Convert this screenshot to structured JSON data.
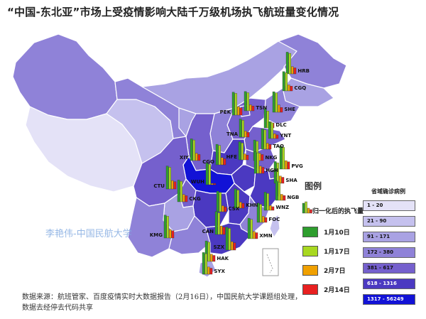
{
  "title": "“中国-东北亚”市场上受疫情影响大陆千万级机场执飞航班量变化情况",
  "legend": {
    "title": "图例",
    "normalized_label": "归一化后的执飞量",
    "dates": [
      {
        "label": "1月10日",
        "color": "#2e9e2e"
      },
      {
        "label": "1月17日",
        "color": "#a8d820"
      },
      {
        "label": "2月7日",
        "color": "#f0a000"
      },
      {
        "label": "2月14日",
        "color": "#e82020"
      }
    ]
  },
  "choropleth": {
    "title": "省域确诊病例",
    "classes": [
      {
        "label": "1 - 20",
        "color": "#e4e2f7"
      },
      {
        "label": "21 - 90",
        "color": "#c5c1ee"
      },
      {
        "label": "91 - 171",
        "color": "#a9a2e3"
      },
      {
        "label": "172 - 380",
        "color": "#8f82d8"
      },
      {
        "label": "381 - 617",
        "color": "#7560cd"
      },
      {
        "label": "618 - 1316",
        "color": "#4b39c1"
      },
      {
        "label": "1317 - 56249",
        "color": "#1212d6"
      }
    ]
  },
  "airports": [
    {
      "code": "HRB",
      "bars": [
        0.9,
        0.85,
        0.3,
        0.25
      ]
    },
    {
      "code": "CGQ",
      "bars": [
        0.8,
        0.75,
        0.25,
        0.2
      ]
    },
    {
      "code": "SHE",
      "bars": [
        0.85,
        0.8,
        0.3,
        0.2
      ]
    },
    {
      "code": "DLC",
      "bars": [
        0.8,
        0.7,
        0.25,
        0.2
      ]
    },
    {
      "code": "PEK",
      "bars": [
        0.95,
        0.9,
        0.35,
        0.3
      ]
    },
    {
      "code": "TSN",
      "bars": [
        0.8,
        0.75,
        0.25,
        0.2
      ]
    },
    {
      "code": "YNT",
      "bars": [
        0.7,
        0.65,
        0.2,
        0.15
      ]
    },
    {
      "code": "TNA",
      "bars": [
        0.75,
        0.7,
        0.25,
        0.2
      ]
    },
    {
      "code": "TAO",
      "bars": [
        0.85,
        0.8,
        0.25,
        0.2
      ]
    },
    {
      "code": "XIY",
      "bars": [
        0.9,
        0.85,
        0.3,
        0.25
      ]
    },
    {
      "code": "CGO",
      "bars": [
        0.85,
        0.8,
        0.3,
        0.25
      ]
    },
    {
      "code": "HFE",
      "bars": [
        0.75,
        0.7,
        0.25,
        0.2
      ]
    },
    {
      "code": "NKG",
      "bars": [
        0.85,
        0.8,
        0.3,
        0.25
      ]
    },
    {
      "code": "PVG",
      "bars": [
        0.95,
        0.9,
        0.35,
        0.3
      ]
    },
    {
      "code": "SHA",
      "bars": [
        0.9,
        0.85,
        0.3,
        0.25
      ]
    },
    {
      "code": "HGH",
      "bars": [
        0.9,
        0.85,
        0.3,
        0.25
      ]
    },
    {
      "code": "NGB",
      "bars": [
        0.8,
        0.75,
        0.25,
        0.2
      ]
    },
    {
      "code": "WUH",
      "bars": [
        0.9,
        0.85,
        0.05,
        0.05
      ]
    },
    {
      "code": "CTU",
      "bars": [
        0.95,
        0.9,
        0.35,
        0.3
      ]
    },
    {
      "code": "CKG",
      "bars": [
        0.9,
        0.85,
        0.3,
        0.25
      ]
    },
    {
      "code": "KHN",
      "bars": [
        0.8,
        0.75,
        0.25,
        0.2
      ]
    },
    {
      "code": "CSX",
      "bars": [
        0.85,
        0.8,
        0.25,
        0.2
      ]
    },
    {
      "code": "WNZ",
      "bars": [
        0.75,
        0.7,
        0.2,
        0.15
      ]
    },
    {
      "code": "FOC",
      "bars": [
        0.8,
        0.75,
        0.25,
        0.2
      ]
    },
    {
      "code": "KMG",
      "bars": [
        0.95,
        0.9,
        0.35,
        0.3
      ]
    },
    {
      "code": "CAN",
      "bars": [
        0.95,
        0.9,
        0.35,
        0.3
      ]
    },
    {
      "code": "XMN",
      "bars": [
        0.85,
        0.8,
        0.3,
        0.25
      ]
    },
    {
      "code": "SZX",
      "bars": [
        0.95,
        0.9,
        0.35,
        0.3
      ]
    },
    {
      "code": "HAK",
      "bars": [
        0.85,
        0.8,
        0.3,
        0.25
      ]
    },
    {
      "code": "SYX",
      "bars": [
        0.9,
        0.85,
        0.3,
        0.25
      ]
    }
  ],
  "watermark": "李艳伟-中国民航大学",
  "footer": {
    "line1": "数据来源：航班管家、百度疫情实时大数据报告（2月16日），中国民航大学课题组处理，",
    "line2": "数据去经停去代码共享"
  }
}
